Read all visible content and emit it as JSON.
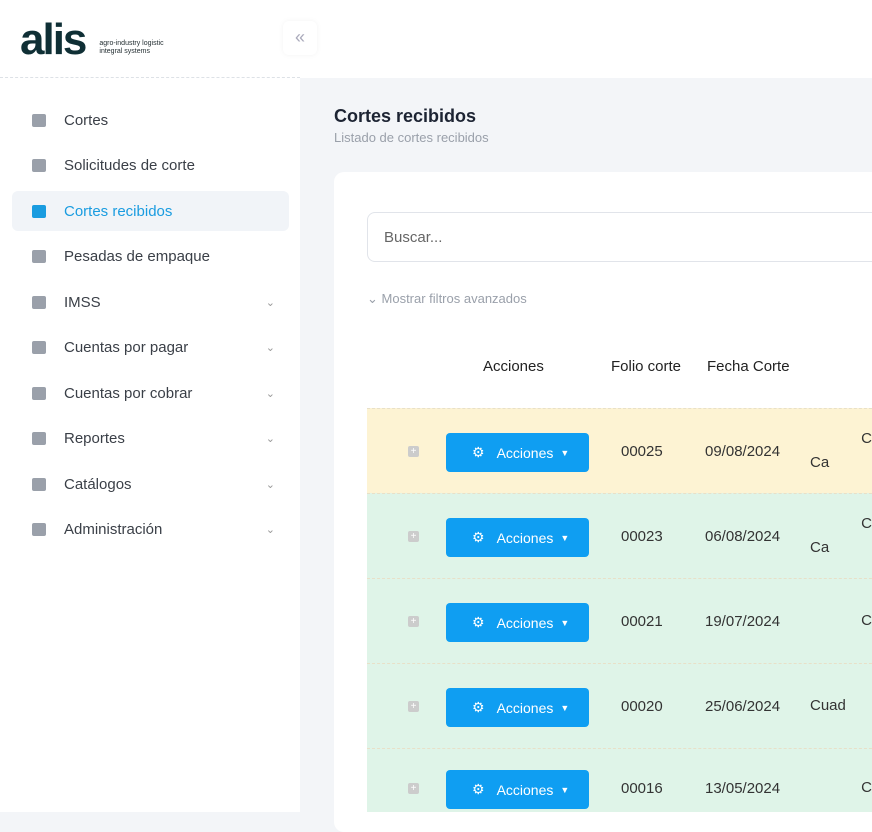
{
  "logo": {
    "word": "alis",
    "tagline1": "agro-industry logistic",
    "tagline2": "integral systems"
  },
  "collapse_icon": "«",
  "sidebar": {
    "items": [
      {
        "label": "Cortes",
        "icon": "boxes-icon",
        "chevron": false
      },
      {
        "label": "Solicitudes de corte",
        "icon": "file-edit-icon",
        "chevron": false
      },
      {
        "label": "Cortes recibidos",
        "icon": "truck-loading-icon",
        "chevron": false,
        "active": true
      },
      {
        "label": "Pesadas de empaque",
        "icon": "weight-icon",
        "chevron": false
      },
      {
        "label": "IMSS",
        "icon": "hand-holding-icon",
        "chevron": true
      },
      {
        "label": "Cuentas por pagar",
        "icon": "user-money-icon",
        "chevron": true
      },
      {
        "label": "Cuentas por cobrar",
        "icon": "file-invoice-icon",
        "chevron": true
      },
      {
        "label": "Reportes",
        "icon": "clipboard-icon",
        "chevron": true
      },
      {
        "label": "Catálogos",
        "icon": "folder-icon",
        "chevron": true
      },
      {
        "label": "Administración",
        "icon": "list-icon",
        "chevron": true
      }
    ]
  },
  "page": {
    "title": "Cortes recibidos",
    "subtitle": "Listado de cortes recibidos",
    "search_placeholder": "Buscar...",
    "filters_label": "Mostrar filtros avanzados"
  },
  "table": {
    "headers": [
      "Acciones",
      "Folio corte",
      "Fecha Corte"
    ],
    "action_label": "Acciones",
    "rows": [
      {
        "folio": "00025",
        "fecha": "09/08/2024",
        "extra": [
          "C",
          "Ca"
        ],
        "color": "#fdf3d3"
      },
      {
        "folio": "00023",
        "fecha": "06/08/2024",
        "extra": [
          "C",
          "Ca"
        ],
        "color": "#dff4e8"
      },
      {
        "folio": "00021",
        "fecha": "19/07/2024",
        "extra": [
          "C"
        ],
        "color": "#dff4e8"
      },
      {
        "folio": "00020",
        "fecha": "25/06/2024",
        "extra": [
          "Cuad"
        ],
        "color": "#dff4e8"
      },
      {
        "folio": "00016",
        "fecha": "13/05/2024",
        "extra": [
          "C"
        ],
        "color": "#dff4e8"
      }
    ]
  }
}
